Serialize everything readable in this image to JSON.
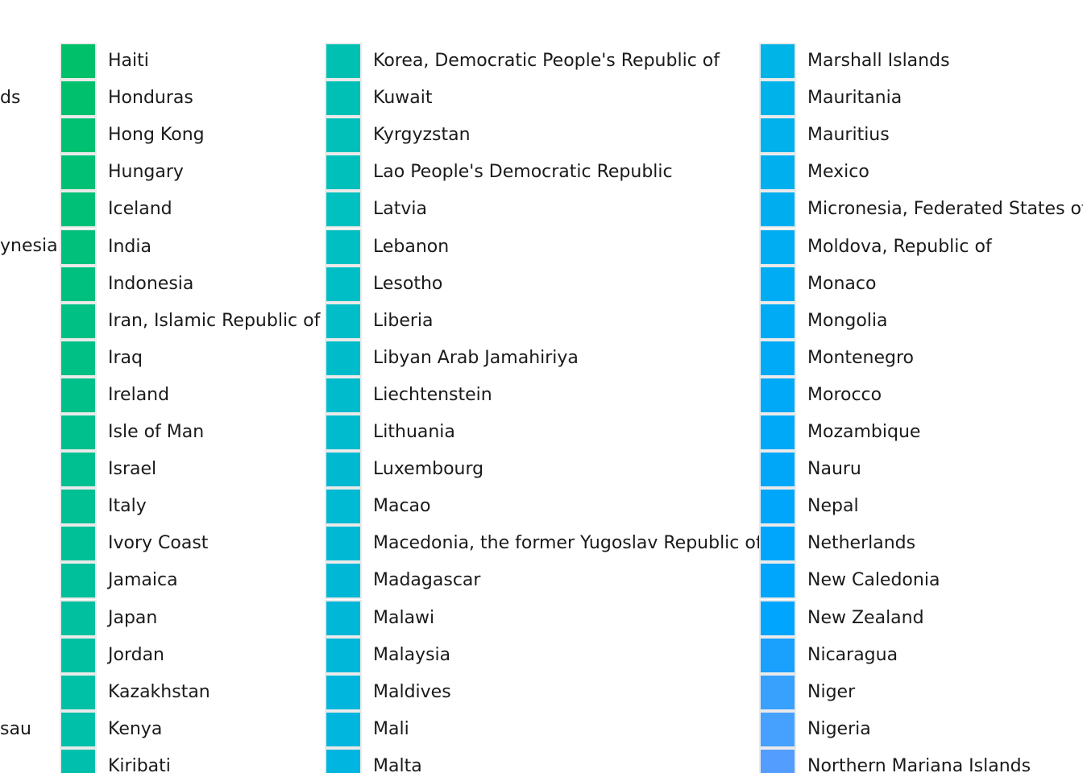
{
  "chart_data": {
    "type": "legend",
    "columns": [
      {
        "items": [
          {
            "label": "ds",
            "color": "#00c06a"
          },
          {
            "label": "",
            "color": ""
          },
          {
            "label": "",
            "color": ""
          },
          {
            "label": "",
            "color": ""
          },
          {
            "label": "ynesia",
            "color": ""
          },
          {
            "label": "",
            "color": ""
          },
          {
            "label": "",
            "color": ""
          },
          {
            "label": "",
            "color": ""
          },
          {
            "label": "",
            "color": ""
          },
          {
            "label": "",
            "color": ""
          },
          {
            "label": "",
            "color": ""
          },
          {
            "label": "",
            "color": ""
          },
          {
            "label": "",
            "color": ""
          },
          {
            "label": "",
            "color": ""
          },
          {
            "label": "",
            "color": ""
          },
          {
            "label": "",
            "color": ""
          },
          {
            "label": "",
            "color": ""
          },
          {
            "label": "sau",
            "color": ""
          }
        ]
      },
      {
        "items": [
          {
            "label": "Haiti",
            "color": "#00c06a"
          },
          {
            "label": "Honduras",
            "color": "#00c06e"
          },
          {
            "label": "Hong Kong",
            "color": "#00c071"
          },
          {
            "label": "Hungary",
            "color": "#00c075"
          },
          {
            "label": "Iceland",
            "color": "#00c078"
          },
          {
            "label": "India",
            "color": "#00c07c"
          },
          {
            "label": "Indonesia",
            "color": "#00c07f"
          },
          {
            "label": "Iran, Islamic Republic of",
            "color": "#00c083"
          },
          {
            "label": "Iraq",
            "color": "#00c086"
          },
          {
            "label": "Ireland",
            "color": "#00c08a"
          },
          {
            "label": "Isle of Man",
            "color": "#00c08d"
          },
          {
            "label": "Israel",
            "color": "#00c091"
          },
          {
            "label": "Italy",
            "color": "#00c094"
          },
          {
            "label": "Ivory Coast",
            "color": "#00c098"
          },
          {
            "label": "Jamaica",
            "color": "#00c09b"
          },
          {
            "label": "Japan",
            "color": "#00c09f"
          },
          {
            "label": "Jordan",
            "color": "#00c0a2"
          },
          {
            "label": "Kazakhstan",
            "color": "#00c0a6"
          },
          {
            "label": "Kenya",
            "color": "#00c0a9"
          },
          {
            "label": "Kiribati",
            "color": "#00c0ad"
          }
        ]
      },
      {
        "items": [
          {
            "label": "Korea, Democratic People's Republic of",
            "color": "#00c0b2"
          },
          {
            "label": "Kuwait",
            "color": "#00c0b5"
          },
          {
            "label": "Kyrgyzstan",
            "color": "#00c0b9"
          },
          {
            "label": "Lao People's Democratic Republic",
            "color": "#00c0bc"
          },
          {
            "label": "Latvia",
            "color": "#00c0c0"
          },
          {
            "label": "Lebanon",
            "color": "#00bfc3"
          },
          {
            "label": "Lesotho",
            "color": "#00bec5"
          },
          {
            "label": "Liberia",
            "color": "#00bdc8"
          },
          {
            "label": "Libyan Arab Jamahiriya",
            "color": "#00bcca"
          },
          {
            "label": "Liechtenstein",
            "color": "#00bbcc"
          },
          {
            "label": "Lithuania",
            "color": "#00bace"
          },
          {
            "label": "Luxembourg",
            "color": "#00b9d0"
          },
          {
            "label": "Macao",
            "color": "#00b9d2"
          },
          {
            "label": "Macedonia, the former Yugoslav Republic of",
            "color": "#00b8d4"
          },
          {
            "label": "Madagascar",
            "color": "#00b8d6"
          },
          {
            "label": "Malawi",
            "color": "#00b7d8"
          },
          {
            "label": "Malaysia",
            "color": "#00b7da"
          },
          {
            "label": "Maldives",
            "color": "#00b6dc"
          },
          {
            "label": "Mali",
            "color": "#00b6de"
          },
          {
            "label": "Malta",
            "color": "#00b5e0"
          }
        ]
      },
      {
        "items": [
          {
            "label": "Marshall Islands",
            "color": "#00b4e8"
          },
          {
            "label": "Mauritania",
            "color": "#00b2ea"
          },
          {
            "label": "Mauritius",
            "color": "#00b1ec"
          },
          {
            "label": "Mexico",
            "color": "#00afee"
          },
          {
            "label": "Micronesia, Federated States of",
            "color": "#00aef0"
          },
          {
            "label": "Moldova, Republic of",
            "color": "#00adf2"
          },
          {
            "label": "Monaco",
            "color": "#00acf3"
          },
          {
            "label": "Mongolia",
            "color": "#00abf5"
          },
          {
            "label": "Montenegro",
            "color": "#00aaf6"
          },
          {
            "label": "Morocco",
            "color": "#00a9f7"
          },
          {
            "label": "Mozambique",
            "color": "#00a8f8"
          },
          {
            "label": "Nauru",
            "color": "#00a7f9"
          },
          {
            "label": "Nepal",
            "color": "#00a6fa"
          },
          {
            "label": "Netherlands",
            "color": "#00a6fb"
          },
          {
            "label": "New Caledonia",
            "color": "#00a5fc"
          },
          {
            "label": "New Zealand",
            "color": "#00a5fd"
          },
          {
            "label": "Nicaragua",
            "color": "#1aa0fd"
          },
          {
            "label": "Niger",
            "color": "#38a0fd"
          },
          {
            "label": "Nigeria",
            "color": "#46a0fd"
          },
          {
            "label": "Northern Mariana Islands",
            "color": "#529dfd"
          }
        ]
      }
    ]
  }
}
